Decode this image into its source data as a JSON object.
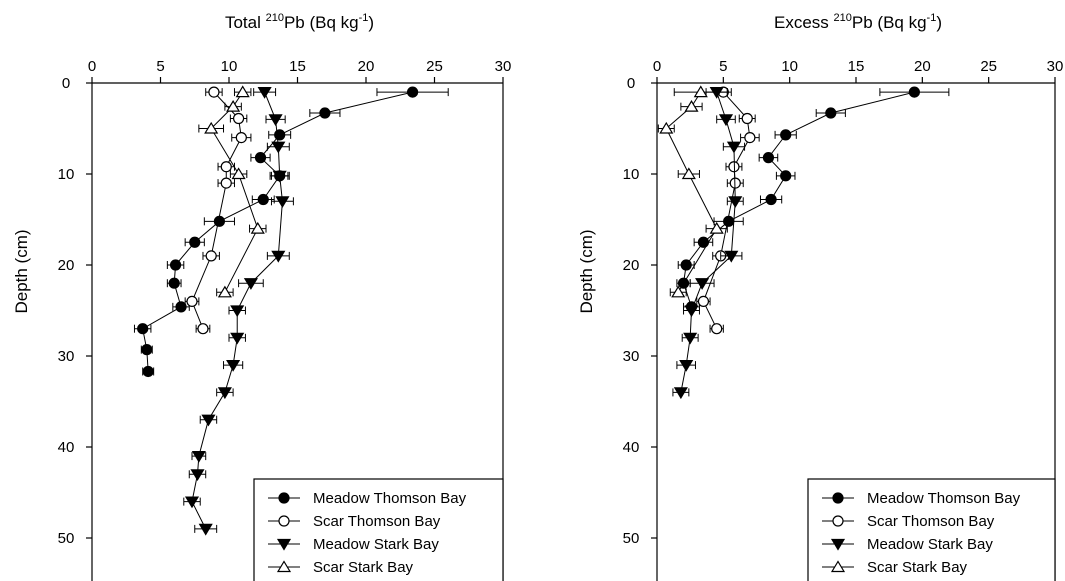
{
  "chart_data": [
    {
      "type": "scatter",
      "title": "",
      "xlabel_parts": [
        "Total ",
        "210",
        "Pb (Bq kg",
        "-1",
        ")"
      ],
      "ylabel": "Depth (cm)",
      "xlim": [
        0,
        30
      ],
      "ylim": [
        0,
        55
      ],
      "y_inverted": true,
      "x_ticks": [
        0,
        5,
        10,
        15,
        20,
        25,
        30
      ],
      "y_ticks": [
        0,
        10,
        20,
        30,
        40,
        50
      ],
      "grid": false,
      "legend_placement": "bottom-right",
      "series": [
        {
          "name": "Meadow Thomson Bay",
          "marker": "circle-filled",
          "points": [
            {
              "x": 23.4,
              "y": 1,
              "xerr": 2.6
            },
            {
              "x": 17.0,
              "y": 3.3,
              "xerr": 1.1
            },
            {
              "x": 13.7,
              "y": 5.7,
              "xerr": 0.8
            },
            {
              "x": 12.3,
              "y": 8.2,
              "xerr": 0.7
            },
            {
              "x": 13.7,
              "y": 10.2,
              "xerr": 0.7
            },
            {
              "x": 12.5,
              "y": 12.8,
              "xerr": 0.8
            },
            {
              "x": 9.3,
              "y": 15.2,
              "xerr": 1.1
            },
            {
              "x": 7.5,
              "y": 17.5,
              "xerr": 0.7
            },
            {
              "x": 6.1,
              "y": 20.0,
              "xerr": 0.6
            },
            {
              "x": 6.0,
              "y": 22.0,
              "xerr": 0.5
            },
            {
              "x": 6.5,
              "y": 24.6,
              "xerr": 0.6
            },
            {
              "x": 3.7,
              "y": 27.0,
              "xerr": 0.6
            },
            {
              "x": 4.0,
              "y": 29.3,
              "xerr": 0.4
            },
            {
              "x": 4.1,
              "y": 31.7,
              "xerr": 0.4
            }
          ]
        },
        {
          "name": "Scar Thomson Bay",
          "marker": "circle-open",
          "points": [
            {
              "x": 8.9,
              "y": 1,
              "xerr": 0.6
            },
            {
              "x": 10.7,
              "y": 3.9,
              "xerr": 0.6
            },
            {
              "x": 10.9,
              "y": 6.0,
              "xerr": 0.7
            },
            {
              "x": 9.8,
              "y": 9.2,
              "xerr": 0.6
            },
            {
              "x": 9.8,
              "y": 11.0,
              "xerr": 0.6
            },
            {
              "x": 8.7,
              "y": 19.0,
              "xerr": 0.6
            },
            {
              "x": 7.3,
              "y": 24.0,
              "xerr": 0.5
            },
            {
              "x": 8.1,
              "y": 27.0,
              "xerr": 0.5
            }
          ]
        },
        {
          "name": "Meadow Stark Bay",
          "marker": "triangle-down-filled",
          "points": [
            {
              "x": 12.6,
              "y": 1,
              "xerr": 0.8
            },
            {
              "x": 13.4,
              "y": 4.0,
              "xerr": 0.7
            },
            {
              "x": 13.6,
              "y": 7.0,
              "xerr": 0.8
            },
            {
              "x": 13.7,
              "y": 10.2,
              "xerr": 0.6
            },
            {
              "x": 13.9,
              "y": 13.0,
              "xerr": 0.8
            },
            {
              "x": 13.6,
              "y": 19.0,
              "xerr": 0.8
            },
            {
              "x": 11.6,
              "y": 22.0,
              "xerr": 0.9
            },
            {
              "x": 10.6,
              "y": 25.0,
              "xerr": 0.6
            },
            {
              "x": 10.6,
              "y": 28.0,
              "xerr": 0.6
            },
            {
              "x": 10.3,
              "y": 31.0,
              "xerr": 0.7
            },
            {
              "x": 9.7,
              "y": 34.0,
              "xerr": 0.6
            },
            {
              "x": 8.5,
              "y": 37.0,
              "xerr": 0.6
            },
            {
              "x": 7.8,
              "y": 41.0,
              "xerr": 0.5
            },
            {
              "x": 7.7,
              "y": 43.0,
              "xerr": 0.6
            },
            {
              "x": 7.3,
              "y": 46.0,
              "xerr": 0.6
            },
            {
              "x": 8.3,
              "y": 49.0,
              "xerr": 0.8
            }
          ]
        },
        {
          "name": "Scar Stark Bay",
          "marker": "triangle-up-open",
          "points": [
            {
              "x": 11.0,
              "y": 1,
              "xerr": 0.6
            },
            {
              "x": 10.3,
              "y": 2.6,
              "xerr": 0.6
            },
            {
              "x": 8.7,
              "y": 5.0,
              "xerr": 0.9
            },
            {
              "x": 10.7,
              "y": 10.0,
              "xerr": 0.6
            },
            {
              "x": 12.1,
              "y": 16.0,
              "xerr": 0.6
            },
            {
              "x": 9.7,
              "y": 23.0,
              "xerr": 0.6
            }
          ]
        }
      ]
    },
    {
      "type": "scatter",
      "title": "",
      "xlabel_parts": [
        "Excess ",
        "210",
        "Pb (Bq kg",
        "-1",
        ")"
      ],
      "ylabel": "Depth (cm)",
      "xlim": [
        0,
        30
      ],
      "ylim": [
        0,
        55
      ],
      "y_inverted": true,
      "x_ticks": [
        0,
        5,
        10,
        15,
        20,
        25,
        30
      ],
      "y_ticks": [
        0,
        10,
        20,
        30,
        40,
        50
      ],
      "grid": false,
      "legend_placement": "bottom-right",
      "series": [
        {
          "name": "Meadow Thomson Bay",
          "marker": "circle-filled",
          "points": [
            {
              "x": 19.4,
              "y": 1,
              "xerr": 2.6
            },
            {
              "x": 13.1,
              "y": 3.3,
              "xerr": 1.1
            },
            {
              "x": 9.7,
              "y": 5.7,
              "xerr": 0.8
            },
            {
              "x": 8.4,
              "y": 8.2,
              "xerr": 0.7
            },
            {
              "x": 9.7,
              "y": 10.2,
              "xerr": 0.7
            },
            {
              "x": 8.6,
              "y": 12.8,
              "xerr": 0.8
            },
            {
              "x": 5.4,
              "y": 15.2,
              "xerr": 1.1
            },
            {
              "x": 3.5,
              "y": 17.5,
              "xerr": 0.7
            },
            {
              "x": 2.2,
              "y": 20.0,
              "xerr": 0.6
            },
            {
              "x": 2.0,
              "y": 22.0,
              "xerr": 0.5
            },
            {
              "x": 2.6,
              "y": 24.6,
              "xerr": 0.6
            }
          ]
        },
        {
          "name": "Scar Thomson Bay",
          "marker": "circle-open",
          "points": [
            {
              "x": 5.0,
              "y": 1,
              "xerr": 0.6
            },
            {
              "x": 6.8,
              "y": 3.9,
              "xerr": 0.6
            },
            {
              "x": 7.0,
              "y": 6.0,
              "xerr": 0.7
            },
            {
              "x": 5.8,
              "y": 9.2,
              "xerr": 0.6
            },
            {
              "x": 5.9,
              "y": 11.0,
              "xerr": 0.6
            },
            {
              "x": 4.8,
              "y": 19.0,
              "xerr": 0.6
            },
            {
              "x": 3.5,
              "y": 24.0,
              "xerr": 0.5
            },
            {
              "x": 4.5,
              "y": 27.0,
              "xerr": 0.5
            }
          ]
        },
        {
          "name": "Meadow Stark Bay",
          "marker": "triangle-down-filled",
          "points": [
            {
              "x": 4.5,
              "y": 1,
              "xerr": 0.8
            },
            {
              "x": 5.2,
              "y": 4.0,
              "xerr": 0.7
            },
            {
              "x": 5.8,
              "y": 7.0,
              "xerr": 0.8
            },
            {
              "x": 5.9,
              "y": 13.0,
              "xerr": 0.6
            },
            {
              "x": 5.6,
              "y": 19.0,
              "xerr": 0.8
            },
            {
              "x": 3.4,
              "y": 22.0,
              "xerr": 0.9
            },
            {
              "x": 2.6,
              "y": 25.0,
              "xerr": 0.6
            },
            {
              "x": 2.5,
              "y": 28.0,
              "xerr": 0.6
            },
            {
              "x": 2.2,
              "y": 31.0,
              "xerr": 0.7
            },
            {
              "x": 1.8,
              "y": 34.0,
              "xerr": 0.6
            }
          ]
        },
        {
          "name": "Scar Stark Bay",
          "marker": "triangle-up-open",
          "points": [
            {
              "x": 3.3,
              "y": 1,
              "xerr": 2.0
            },
            {
              "x": 2.6,
              "y": 2.6,
              "xerr": 0.8
            },
            {
              "x": 0.7,
              "y": 5.0,
              "xerr": 0.6
            },
            {
              "x": 2.4,
              "y": 10.0,
              "xerr": 0.8
            },
            {
              "x": 4.5,
              "y": 16.0,
              "xerr": 0.8
            },
            {
              "x": 1.6,
              "y": 23.0,
              "xerr": 0.6
            }
          ]
        }
      ]
    }
  ]
}
